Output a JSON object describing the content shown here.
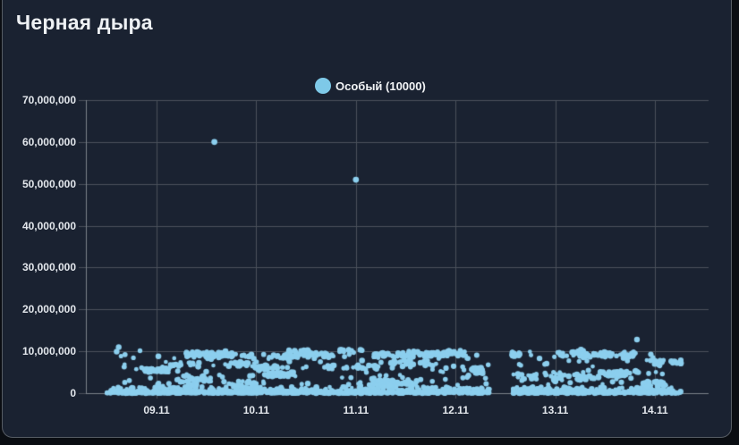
{
  "card": {
    "title": "Черная дыра"
  },
  "legend": {
    "label": "Особый (10000)",
    "marker_color": "#7EC9E8"
  },
  "colors": {
    "card_background": "#1a2231",
    "card_border": "#565c64",
    "grid_line": "#4b515b",
    "axis_line": "#7a8088",
    "point": "#8CCFEE",
    "label_text": "#e3e7ec"
  },
  "chart_data": {
    "type": "scatter",
    "title": "Черная дыра",
    "series": [
      {
        "name": "Особый (10000)",
        "color": "#8CCFEE"
      }
    ],
    "xlabel": "",
    "ylabel": "",
    "grid": true,
    "legend_position": "top-center",
    "ylim": [
      0,
      70000000
    ],
    "y_tick_values": [
      0,
      10000000,
      20000000,
      30000000,
      40000000,
      50000000,
      60000000,
      70000000
    ],
    "y_ticks": [
      "0",
      "10,000,000",
      "20,000,000",
      "30,000,000",
      "40,000,000",
      "50,000,000",
      "60,000,000",
      "70,000,000"
    ],
    "x_ticks": [
      "09.11",
      "10.11",
      "11.11",
      "12.11",
      "13.11",
      "14.11"
    ],
    "x_tick_days": [
      9,
      10,
      11,
      12,
      13,
      14
    ],
    "xlim_days": [
      8.29,
      14.54
    ],
    "outliers": [
      {
        "x_day": 9.58,
        "y": 60000000
      },
      {
        "x_day": 11.0,
        "y": 51000000
      }
    ],
    "high_points": [
      {
        "x_day": 13.82,
        "y": 12800000
      },
      {
        "x_day": 8.62,
        "y": 11000000
      }
    ],
    "cloud": {
      "description": "dense scatter of ~2000 points between 0 and ~10,400,000 with horizontal streaks and a solid band near 0; gap in data between day 12.34 and 12.57",
      "segments_days": [
        [
          8.5,
          12.34
        ],
        [
          12.57,
          14.26
        ]
      ],
      "y_min": 0,
      "y_typical_max": 10400000,
      "dense_band_y_max": 1500000,
      "approx_points": 2000,
      "seed": 1337
    }
  }
}
